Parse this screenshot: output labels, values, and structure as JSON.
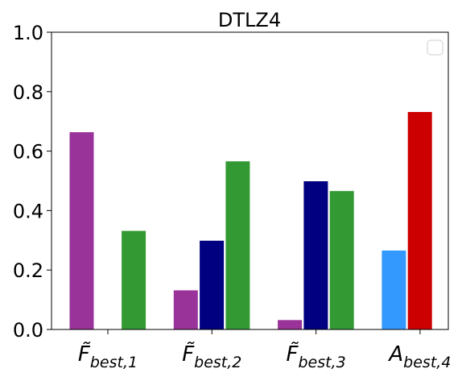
{
  "chart_data": {
    "type": "bar",
    "title": "DTLZ4",
    "xlabel": "",
    "ylabel": "",
    "ylim": [
      0,
      1.0
    ],
    "yticks": [
      "0.0",
      "0.2",
      "0.4",
      "0.6",
      "0.8",
      "1.0"
    ],
    "categories": [
      {
        "main": "F",
        "tilde": true,
        "sub": "best,1"
      },
      {
        "main": "F",
        "tilde": true,
        "sub": "best,2"
      },
      {
        "main": "F",
        "tilde": true,
        "sub": "best,3"
      },
      {
        "main": "A",
        "tilde": false,
        "sub": "best,4"
      }
    ],
    "groups": [
      {
        "bars": [
          {
            "slot": 0,
            "value": 0.665,
            "color": "#993399"
          },
          {
            "slot": 2,
            "value": 0.333,
            "color": "#339933"
          }
        ]
      },
      {
        "bars": [
          {
            "slot": 0,
            "value": 0.133,
            "color": "#993399"
          },
          {
            "slot": 1,
            "value": 0.3,
            "color": "#000080"
          },
          {
            "slot": 2,
            "value": 0.567,
            "color": "#339933"
          }
        ]
      },
      {
        "bars": [
          {
            "slot": 0,
            "value": 0.033,
            "color": "#993399"
          },
          {
            "slot": 1,
            "value": 0.5,
            "color": "#000080"
          },
          {
            "slot": 2,
            "value": 0.467,
            "color": "#339933"
          }
        ]
      },
      {
        "bars": [
          {
            "slot": 0,
            "value": 0.267,
            "color": "#3399ff"
          },
          {
            "slot": 1,
            "value": 0.733,
            "color": "#cc0000"
          }
        ]
      }
    ],
    "legend": {
      "position": "top-right",
      "entries": []
    }
  }
}
